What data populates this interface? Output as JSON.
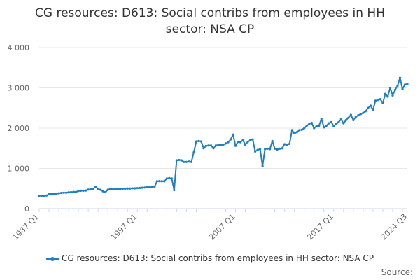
{
  "title_line1": "CG resources: D613: Social contribs from employees in HH",
  "title_line2": "sector: NSA CP",
  "source_label": "Source:",
  "colors": {
    "series": "#1f7fc1",
    "grid": "#e6e6e6",
    "axis_text": "#666666"
  },
  "chart_data": {
    "type": "line",
    "xlabel": "",
    "ylabel": "",
    "ylim": [
      0,
      4000
    ],
    "yticks": [
      "0",
      "1 000",
      "2 000",
      "3 000",
      "4 000"
    ],
    "xticks": [
      "1987 Q1",
      "1997 Q1",
      "2007 Q1",
      "2017 Q1",
      "2024 Q3"
    ],
    "grid": true,
    "legend_position": "bottom",
    "series": [
      {
        "name": "CG resources: D613: Social contribs from employees in HH sector: NSA CP",
        "x_range": [
          "1987 Q1",
          "2024 Q3"
        ],
        "frequency": "quarterly",
        "values": [
          320,
          320,
          320,
          325,
          360,
          365,
          365,
          370,
          380,
          390,
          395,
          395,
          405,
          410,
          415,
          415,
          440,
          445,
          445,
          450,
          475,
          480,
          490,
          545,
          490,
          470,
          430,
          410,
          470,
          495,
          480,
          485,
          490,
          490,
          495,
          495,
          500,
          500,
          505,
          505,
          510,
          515,
          520,
          525,
          530,
          535,
          540,
          545,
          680,
          685,
          680,
          680,
          750,
          760,
          750,
          460,
          1200,
          1210,
          1200,
          1160,
          1160,
          1170,
          1160,
          1400,
          1670,
          1680,
          1670,
          1500,
          1560,
          1570,
          1570,
          1500,
          1570,
          1580,
          1580,
          1590,
          1620,
          1650,
          1720,
          1840,
          1560,
          1660,
          1650,
          1700,
          1590,
          1660,
          1700,
          1720,
          1420,
          1460,
          1480,
          1060,
          1480,
          1490,
          1480,
          1680,
          1490,
          1470,
          1490,
          1500,
          1600,
          1590,
          1610,
          1950,
          1870,
          1900,
          1950,
          1960,
          2000,
          2060,
          2100,
          2130,
          2000,
          2050,
          2060,
          2230,
          2020,
          2060,
          2120,
          2150,
          2050,
          2100,
          2150,
          2220,
          2120,
          2200,
          2260,
          2330,
          2200,
          2280,
          2320,
          2350,
          2380,
          2420,
          2500,
          2560,
          2450,
          2680,
          2700,
          2720,
          2620,
          2850,
          2780,
          3000,
          2810,
          2950,
          3050,
          3250,
          2970,
          3080,
          3100
        ]
      }
    ]
  }
}
